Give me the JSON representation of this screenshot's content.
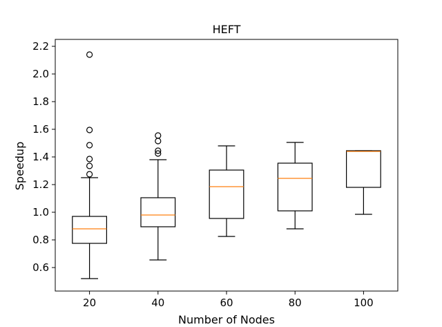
{
  "chart_data": {
    "type": "box",
    "title": "HEFT",
    "xlabel": "Number of Nodes",
    "ylabel": "Speedup",
    "categories": [
      "20",
      "40",
      "60",
      "80",
      "100"
    ],
    "ylim": [
      0.43,
      2.25
    ],
    "yticks": [
      "0.6",
      "0.8",
      "1.0",
      "1.2",
      "1.4",
      "1.6",
      "1.8",
      "2.0",
      "2.2"
    ],
    "grid": false,
    "boxes": [
      {
        "category": "20",
        "whisker_low": 0.52,
        "q1": 0.775,
        "median": 0.88,
        "q3": 0.97,
        "whisker_high": 1.25,
        "outliers": [
          1.275,
          1.335,
          1.385,
          1.485,
          1.595,
          2.14
        ]
      },
      {
        "category": "40",
        "whisker_low": 0.655,
        "q1": 0.895,
        "median": 0.98,
        "q3": 1.105,
        "whisker_high": 1.38,
        "outliers": [
          1.425,
          1.445,
          1.515,
          1.555
        ]
      },
      {
        "category": "60",
        "whisker_low": 0.825,
        "q1": 0.955,
        "median": 1.185,
        "q3": 1.305,
        "whisker_high": 1.48,
        "outliers": []
      },
      {
        "category": "80",
        "whisker_low": 0.88,
        "q1": 1.01,
        "median": 1.245,
        "q3": 1.355,
        "whisker_high": 1.505,
        "outliers": []
      },
      {
        "category": "100",
        "whisker_low": 0.985,
        "q1": 1.18,
        "median": 1.44,
        "q3": 1.445,
        "whisker_high": 1.445,
        "outliers": []
      }
    ],
    "colors": {
      "box": "#000000",
      "median": "#ff7f0e",
      "outlier": "#000000",
      "axes": "#000000",
      "background": "#ffffff"
    }
  }
}
